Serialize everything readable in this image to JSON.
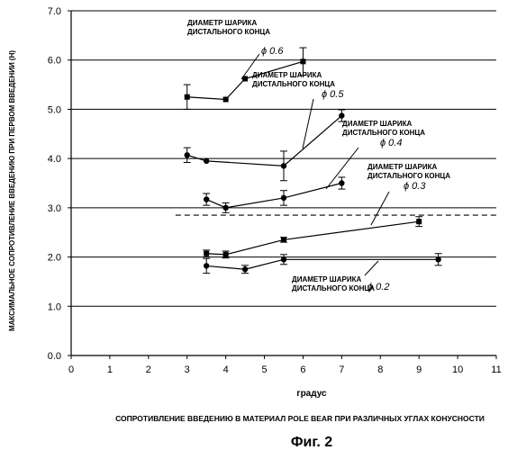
{
  "chart_data": {
    "type": "line",
    "ylabel": "МАКСИМАЛЬНОЕ СОПРОТИВЛЕНИЕ ВВЕДЕНИЮ ПРИ ПЕРВОМ ВВЕДЕНИИ (Н)",
    "xlabel": "градус",
    "caption": "СОПРОТИВЛЕНИЕ ВВЕДЕНИЮ В МАТЕРИАЛ POLE BEAR ПРИ РАЗЛИЧНЫХ   УГЛАХ КОНУСНОСТИ",
    "figure_label": "Фиг. 2",
    "xlim": [
      0,
      11
    ],
    "ylim": [
      0,
      7
    ],
    "x_ticks": [
      "0",
      "1",
      "2",
      "3",
      "4",
      "5",
      "6",
      "7",
      "8",
      "9",
      "10",
      "11"
    ],
    "y_ticks": [
      "0.0",
      "1.0",
      "2.0",
      "3.0",
      "4.0",
      "5.0",
      "6.0",
      "7.0"
    ],
    "grid": "horizontal",
    "reference_line": {
      "style": "dashed",
      "y": 2.85,
      "x": [
        2.7,
        11
      ]
    },
    "series": [
      {
        "annotation": [
          "ДИАМЕТР ШАРИКА",
          "ДИСТАЛЬНОГО КОНЦА"
        ],
        "diameter": "ϕ 0.6",
        "marker": "square",
        "x": [
          3.0,
          4.0,
          4.5,
          6.0
        ],
        "y": [
          5.25,
          5.2,
          5.62,
          5.97
        ],
        "err": [
          0.25,
          0.0,
          0.0,
          0.28
        ]
      },
      {
        "annotation": [
          "ДИАМЕТР ШАРИКА",
          "ДИСТАЛЬНОГО КОНЦА"
        ],
        "diameter": "ϕ 0.5",
        "marker": "circle",
        "x": [
          3.0,
          3.5,
          5.5,
          7.0
        ],
        "y": [
          4.07,
          3.95,
          3.85,
          4.87
        ],
        "err": [
          0.15,
          0.0,
          0.3,
          0.12
        ]
      },
      {
        "annotation": [
          "ДИАМЕТР ШАРИКА",
          "ДИСТАЛЬНОГО КОНЦА"
        ],
        "diameter": "ϕ 0.4",
        "marker": "circle",
        "x": [
          3.5,
          4.0,
          5.5,
          7.0
        ],
        "y": [
          3.17,
          3.0,
          3.2,
          3.5
        ],
        "err": [
          0.12,
          0.1,
          0.15,
          0.12
        ]
      },
      {
        "annotation": [
          "ДИАМЕТР ШАРИКА",
          "ДИСТАЛЬНОГО КОНЦА"
        ],
        "diameter": "ϕ 0.3",
        "marker": "square",
        "x": [
          3.5,
          4.0,
          5.5,
          9.0
        ],
        "y": [
          2.07,
          2.05,
          2.35,
          2.72
        ],
        "err": [
          0.07,
          0.07,
          0.05,
          0.1
        ]
      },
      {
        "annotation": [
          "ДИАМЕТР ШАРИКА",
          "ДИСТАЛЬНОГО КОНЦА"
        ],
        "diameter": "ϕ 0.2",
        "marker": "circle",
        "x": [
          3.5,
          4.5,
          5.5,
          9.5
        ],
        "y": [
          1.82,
          1.75,
          1.95,
          1.95
        ],
        "err": [
          0.15,
          0.08,
          0.1,
          0.12
        ]
      }
    ]
  }
}
